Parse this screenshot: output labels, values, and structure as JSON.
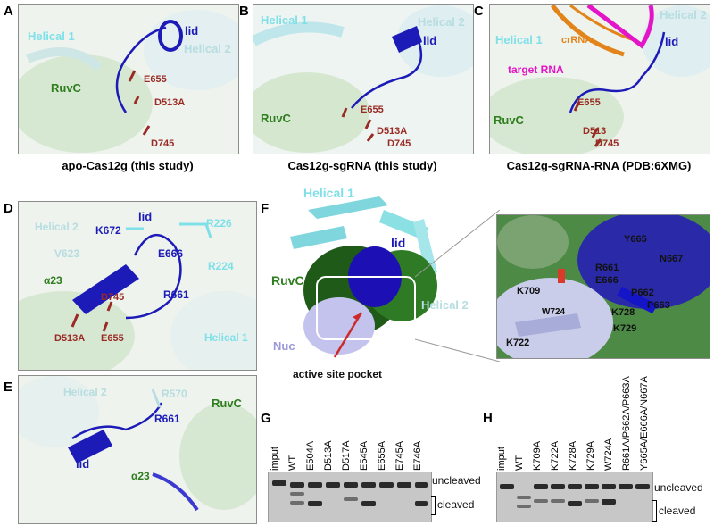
{
  "panels": {
    "A": {
      "letter": "A",
      "caption": "apo-Cas12g (this study)",
      "labels": {
        "helical1": "Helical 1",
        "helical2": "Helical 2",
        "lid": "lid",
        "ruvc": "RuvC",
        "e655": "E655",
        "d513a": "D513A",
        "d745": "D745"
      }
    },
    "B": {
      "letter": "B",
      "caption": "Cas12g-sgRNA (this study)",
      "labels": {
        "helical1": "Helical 1",
        "helical2": "Helical 2",
        "lid": "lid",
        "ruvc": "RuvC",
        "e655": "E655",
        "d513a": "D513A",
        "d745": "D745"
      }
    },
    "C": {
      "letter": "C",
      "caption": "Cas12g-sgRNA-RNA (PDB:6XMG)",
      "labels": {
        "crrna": "crRNA",
        "helical1": "Helical 1",
        "helical2": "Helical 2",
        "lid": "lid",
        "target_rna": "target RNA",
        "ruvc": "RuvC",
        "e655": "E655",
        "d513": "D513",
        "d745": "D745"
      }
    },
    "D": {
      "letter": "D",
      "labels": {
        "helical2": "Helical 2",
        "lid": "lid",
        "k672": "K672",
        "r226": "R226",
        "v623": "V623",
        "e666": "E666",
        "r224": "R224",
        "a23": "α23",
        "d745": "D745",
        "r661": "R661",
        "d513a": "D513A",
        "e655": "E655",
        "helical1": "Helical 1"
      }
    },
    "E": {
      "letter": "E",
      "labels": {
        "helical2": "Helical 2",
        "r570": "R570",
        "ruvc": "RuvC",
        "r661": "R661",
        "lid": "lid",
        "a23": "α23"
      }
    },
    "F": {
      "letter": "F",
      "labels": {
        "helical1": "Helical 1",
        "lid": "lid",
        "ruvc": "RuvC",
        "helical2": "Helical 2",
        "nuc": "Nuc",
        "active_site": "active site pocket"
      },
      "zoom_labels": {
        "y665": "Y665",
        "r661": "R661",
        "n667": "N667",
        "e666": "E666",
        "p662": "P662",
        "k709": "K709",
        "p663": "P663",
        "w724": "W724",
        "k728": "K728",
        "k729": "K729",
        "k722": "K722"
      }
    },
    "G": {
      "letter": "G",
      "lanes": [
        "imput",
        "WT",
        "E504A",
        "D513A",
        "D517A",
        "E545A",
        "E655A",
        "E745A",
        "E746A"
      ],
      "uncleaved": "uncleaved",
      "cleaved": "cleaved"
    },
    "H": {
      "letter": "H",
      "lanes": [
        "imput",
        "WT",
        "K709A",
        "K722A",
        "K728A",
        "K729A",
        "W724A",
        "R661A/P662A/P663A",
        "Y665A/E666A/N667A"
      ],
      "uncleaved": "uncleaved",
      "cleaved": "cleaved"
    }
  }
}
